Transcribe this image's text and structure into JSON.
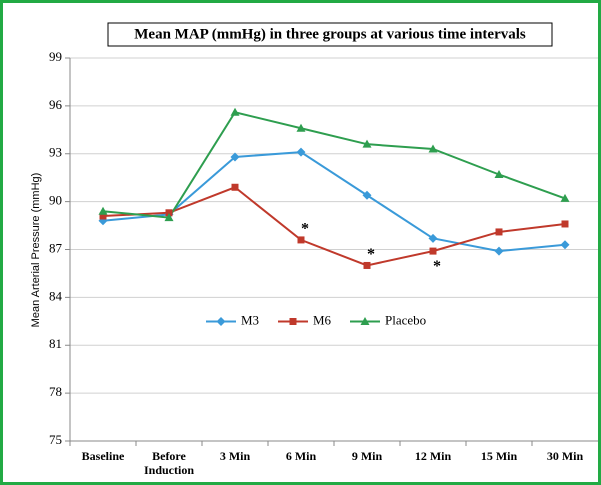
{
  "chart_data": {
    "type": "line",
    "title": "Mean MAP (mmHg) in three groups at various time intervals",
    "y_label": "Mean Arterial Pressure (mmHg)",
    "categories": [
      "Baseline",
      "Before\nInduction",
      "3 Min",
      "6 Min",
      "9 Min",
      "12 Min",
      "15 Min",
      "30 Min"
    ],
    "series": [
      {
        "name": "M3",
        "color": "#3a9ad9",
        "marker": "diamond",
        "values": [
          88.8,
          89.2,
          92.8,
          93.1,
          90.4,
          87.7,
          86.9,
          87.3
        ]
      },
      {
        "name": "M6",
        "color": "#c0392b",
        "marker": "square",
        "values": [
          89.1,
          89.3,
          90.9,
          87.6,
          86.0,
          86.9,
          88.1,
          88.6
        ]
      },
      {
        "name": "Placebo",
        "color": "#2e9e4f",
        "marker": "triangle",
        "values": [
          89.4,
          89.0,
          95.6,
          94.6,
          93.6,
          93.3,
          91.7,
          90.2
        ]
      }
    ],
    "annotations": [
      {
        "text": "*",
        "category": "6 Min"
      },
      {
        "text": "*",
        "category": "9 Min"
      },
      {
        "text": "*",
        "category": "12 Min"
      }
    ],
    "ylim": [
      75,
      99
    ],
    "yticks": [
      75,
      78,
      81,
      84,
      87,
      90,
      93,
      96,
      99
    ],
    "grid": true,
    "legend": "center"
  }
}
